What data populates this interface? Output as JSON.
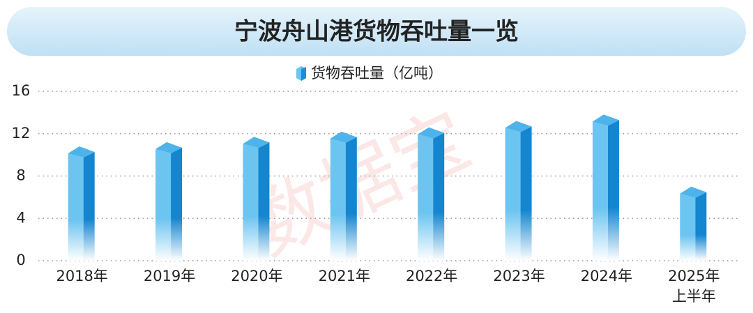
{
  "chart_data": {
    "type": "bar3d",
    "title": "宁波舟山港货物吞吐量一览",
    "categories": [
      "2018年",
      "2019年",
      "2020年",
      "2021年",
      "2022年",
      "2023年",
      "2024年",
      "2025年\n上半年"
    ],
    "series": [
      {
        "name": "货物吞吐量（亿吨）",
        "color": "#1a8fd8",
        "values": [
          10.8,
          11.2,
          11.7,
          12.2,
          12.6,
          13.2,
          13.8,
          7.0
        ]
      }
    ],
    "ylim": [
      0,
      16
    ],
    "yticks": [
      0,
      4,
      8,
      12,
      16
    ],
    "grid": true,
    "watermark": "数据宝"
  }
}
